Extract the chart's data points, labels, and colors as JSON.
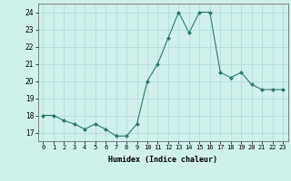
{
  "x": [
    0,
    1,
    2,
    3,
    4,
    5,
    6,
    7,
    8,
    9,
    10,
    11,
    12,
    13,
    14,
    15,
    16,
    17,
    18,
    19,
    20,
    21,
    22,
    23
  ],
  "y": [
    18,
    18,
    17.7,
    17.5,
    17.2,
    17.5,
    17.2,
    16.8,
    16.8,
    17.5,
    20,
    21,
    22.5,
    24,
    22.8,
    24,
    24,
    20.5,
    20.2,
    20.5,
    19.8,
    19.5,
    19.5,
    19.5
  ],
  "line_color": "#2d7a6a",
  "marker_color": "#2d7a6a",
  "bg_color": "#d0f0ec",
  "grid_color": "#aaddd6",
  "xlabel": "Humidex (Indice chaleur)",
  "ylabel_ticks": [
    17,
    18,
    19,
    20,
    21,
    22,
    23,
    24
  ],
  "xlim": [
    -0.5,
    23.5
  ],
  "ylim": [
    16.5,
    24.5
  ],
  "xtick_labels": [
    "0",
    "1",
    "2",
    "3",
    "4",
    "5",
    "6",
    "7",
    "8",
    "9",
    "10",
    "11",
    "12",
    "13",
    "14",
    "15",
    "16",
    "17",
    "18",
    "19",
    "20",
    "21",
    "22",
    "23"
  ]
}
